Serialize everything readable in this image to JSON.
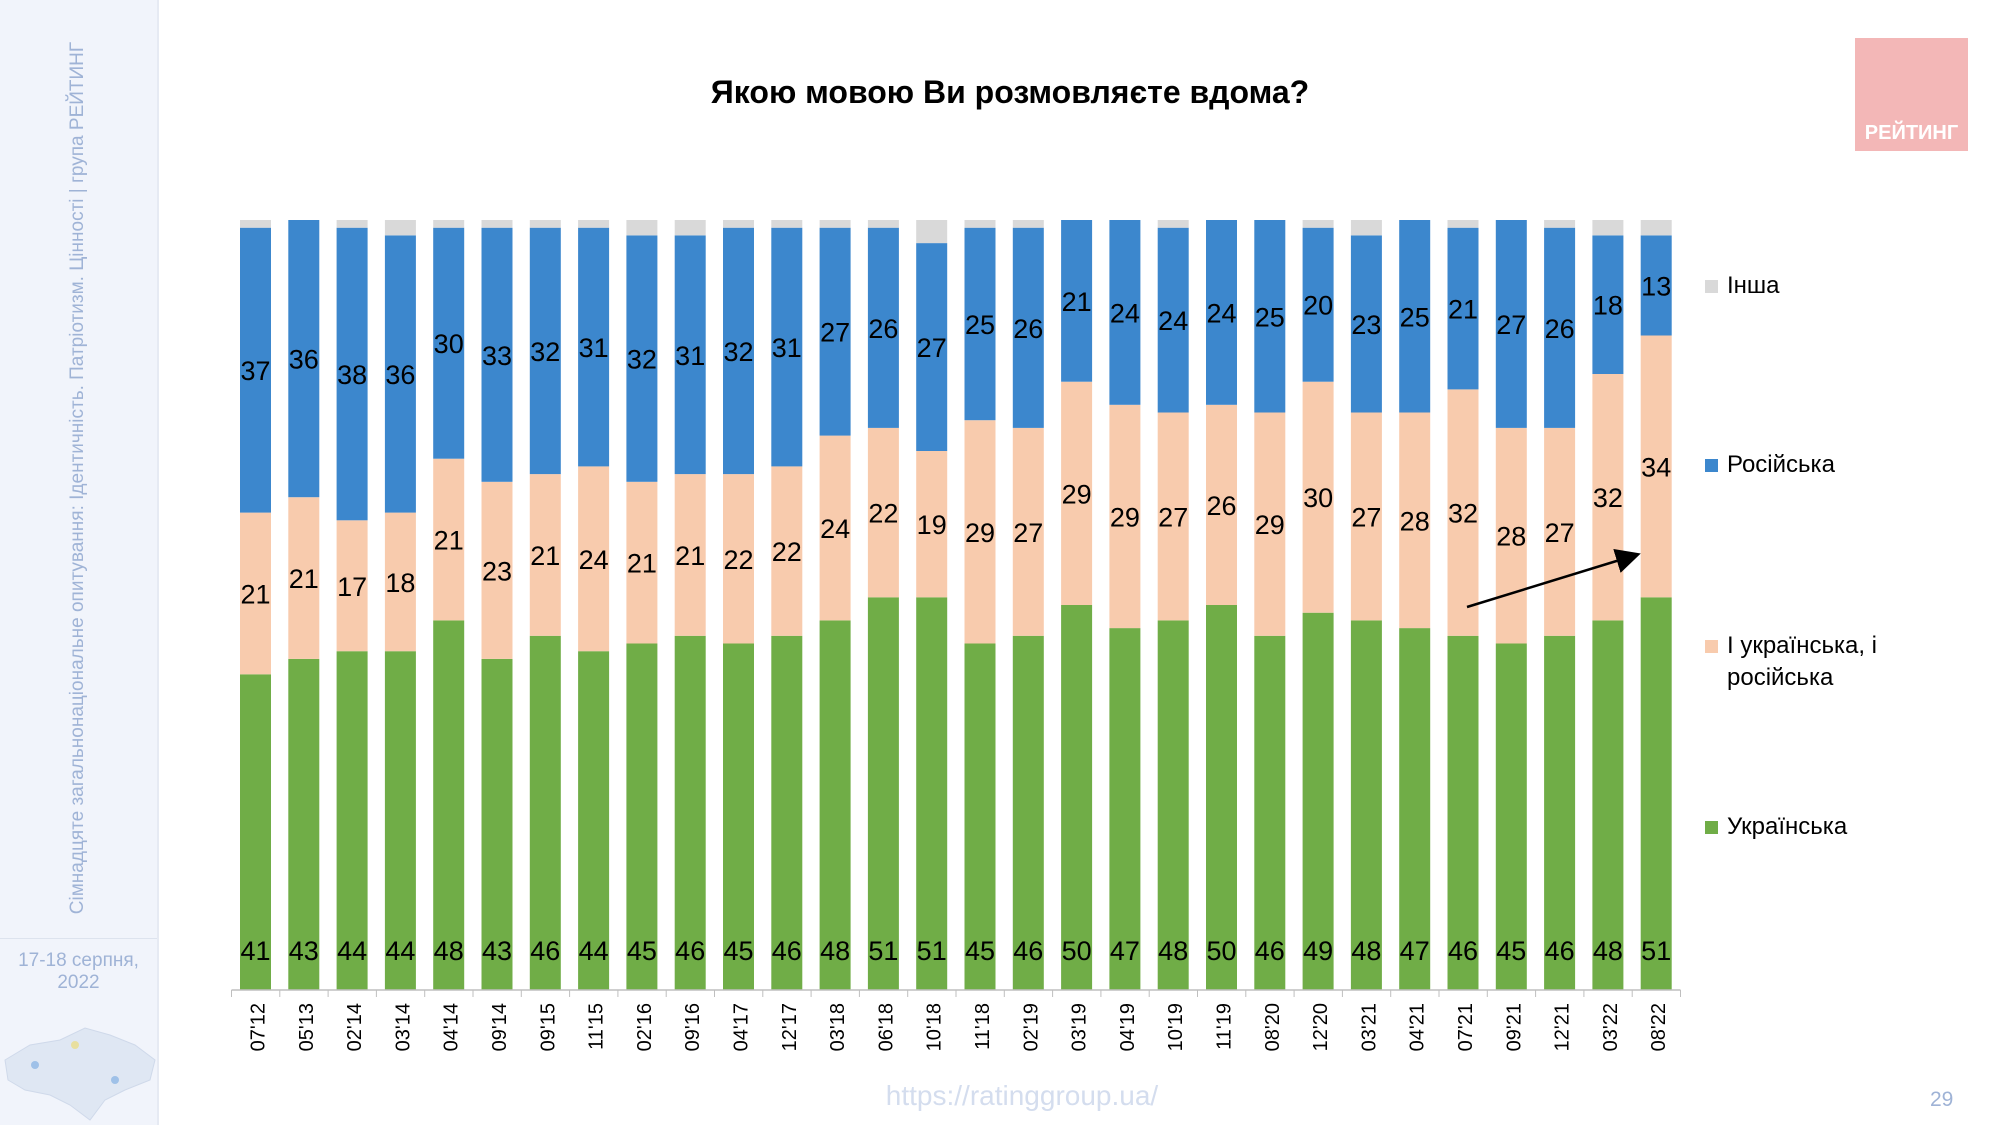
{
  "sidebar": {
    "caption": "Сімнадцяте загальнонаціональне опитування: Ідентичність. Патріотизм. Цінності | група РЕЙТИНГ",
    "date": "17-18 серпня, 2022"
  },
  "logo": {
    "text": "РЕЙТИНГ",
    "color": "#f3b7b7"
  },
  "footer": {
    "url": "https://ratinggroup.ua/",
    "page": "29"
  },
  "chart_data": {
    "type": "bar",
    "stacked": true,
    "title": "Якою мовою Ви розмовляєте вдома?",
    "categories": [
      "07'12",
      "05'13",
      "02'14",
      "03'14",
      "04'14",
      "09'14",
      "09'15",
      "11'15",
      "02'16",
      "09'16",
      "04'17",
      "12'17",
      "03'18",
      "06'18",
      "10'18",
      "11'18",
      "02'19",
      "03'19",
      "04'19",
      "10'19",
      "11'19",
      "08'20",
      "12'20",
      "03'21",
      "04'21",
      "07'21",
      "09'21",
      "12'21",
      "03'22",
      "08'22"
    ],
    "series": [
      {
        "name": "Українська",
        "color": "#70ad47",
        "values": [
          41,
          43,
          44,
          44,
          48,
          43,
          46,
          44,
          45,
          46,
          45,
          46,
          48,
          51,
          51,
          45,
          46,
          50,
          47,
          48,
          50,
          46,
          49,
          48,
          47,
          46,
          45,
          46,
          48,
          51
        ]
      },
      {
        "name": "І українська, і російська",
        "color": "#f8cbad",
        "values": [
          21,
          21,
          17,
          18,
          21,
          23,
          21,
          24,
          21,
          21,
          22,
          22,
          24,
          22,
          19,
          29,
          27,
          29,
          29,
          27,
          26,
          29,
          30,
          27,
          28,
          32,
          28,
          27,
          32,
          34
        ]
      },
      {
        "name": "Російська",
        "color": "#3c87cd",
        "values": [
          37,
          36,
          38,
          36,
          30,
          33,
          32,
          31,
          32,
          31,
          32,
          31,
          27,
          26,
          27,
          25,
          26,
          21,
          24,
          24,
          24,
          25,
          20,
          23,
          25,
          21,
          27,
          26,
          18,
          13
        ]
      },
      {
        "name": "Інша",
        "color": "#d9d9d9",
        "values": [
          1,
          0,
          1,
          2,
          1,
          1,
          1,
          1,
          2,
          2,
          1,
          1,
          1,
          1,
          3,
          1,
          1,
          0,
          0,
          1,
          0,
          0,
          1,
          2,
          0,
          1,
          0,
          1,
          2,
          2
        ]
      }
    ],
    "legend_order": [
      "Інша",
      "Російська",
      "І українська, і російська",
      "Українська"
    ],
    "legend_position": "right",
    "ylim": [
      0,
      100
    ],
    "y_axis_visible": false,
    "grid": false,
    "annotation": "arrow from 09'21 to 08'22 in mixed-language segment"
  }
}
